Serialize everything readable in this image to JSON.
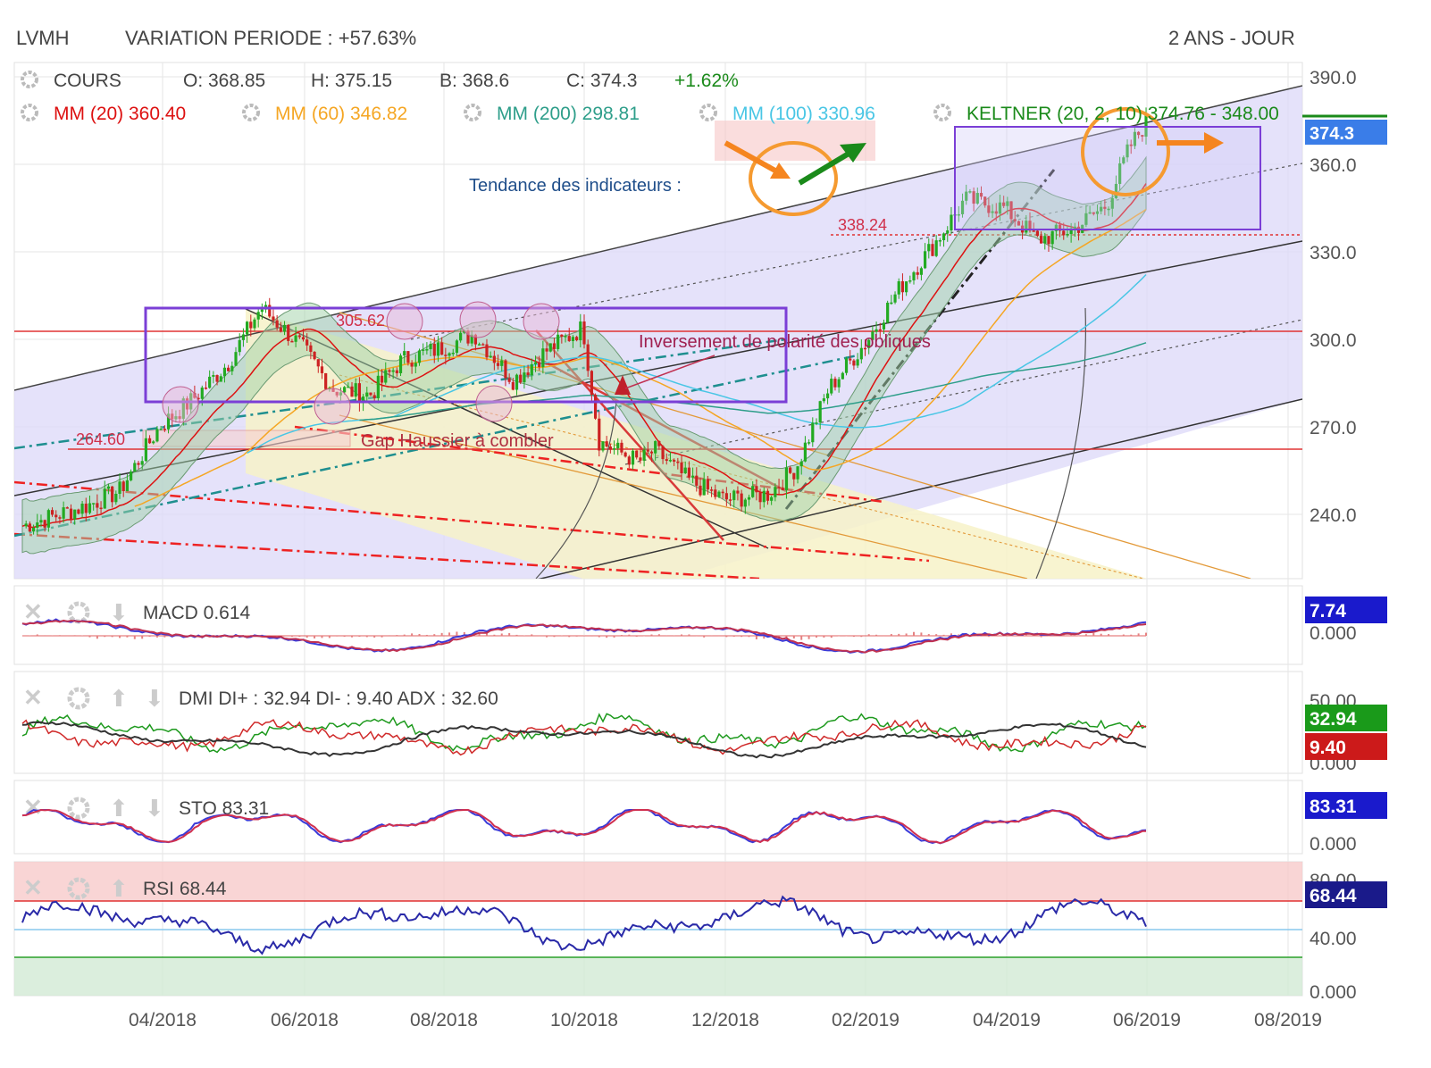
{
  "header": {
    "symbol": "LVMH",
    "variation": "VARIATION PERIODE : +57.63%",
    "period": "2 ANS - JOUR"
  },
  "ohlc": {
    "cours_label": "COURS",
    "open": "O: 368.85",
    "high": "H: 375.15",
    "low": "B: 368.6",
    "close": "C: 374.3",
    "change": "+1.62%"
  },
  "legend": [
    {
      "label": "MM (20)",
      "value": "360.40",
      "color": "#dd1111"
    },
    {
      "label": "MM (60)",
      "value": "346.82",
      "color": "#f5a623"
    },
    {
      "label": "MM (200)",
      "value": "298.81",
      "color": "#2e9e8a"
    },
    {
      "label": "MM (100)",
      "value": "330.96",
      "color": "#49c6e5"
    },
    {
      "label": "KELTNER (20, 2, 10)",
      "value": "374.76 - 348.00",
      "color": "#1a8a1a"
    }
  ],
  "annotations": {
    "trend_label": "Tendance des indicateurs :",
    "level_338": "338.24",
    "level_305": "305.62",
    "level_264": "264.60",
    "polarity": "Inversement de polarité des obliques",
    "gap": "Gap Haussier à combler"
  },
  "colors": {
    "bull_candle": "#22aa22",
    "bear_candle": "#cc2222",
    "channel_fill": "#dcd8f8",
    "yellow_channel": "#f7f2c8",
    "box": "#7b3fd6",
    "orange": "#f59a30",
    "price_badge": "#3a7de8"
  },
  "chart_data": {
    "type": "candlestick",
    "x_ticks": [
      "04/2018",
      "06/2018",
      "08/2018",
      "10/2018",
      "12/2018",
      "02/2019",
      "04/2019",
      "06/2019",
      "08/2019"
    ],
    "y_ticks": [
      "390.0",
      "360.0",
      "330.0",
      "300.0",
      "270.0",
      "240.0"
    ],
    "ylim": [
      214,
      398
    ],
    "last_price": "374.3",
    "close_path": [
      [
        "2018-02",
        236
      ],
      [
        "2018-03",
        243
      ],
      [
        "2018-03-15",
        248
      ],
      [
        "2018-04",
        270
      ],
      [
        "2018-04-15",
        279
      ],
      [
        "2018-05",
        292
      ],
      [
        "2018-05-15",
        311
      ],
      [
        "2018-06",
        298
      ],
      [
        "2018-06-15",
        283
      ],
      [
        "2018-07",
        281
      ],
      [
        "2018-07-15",
        293
      ],
      [
        "2018-08",
        297
      ],
      [
        "2018-08-15",
        302
      ],
      [
        "2018-09",
        286
      ],
      [
        "2018-09-15",
        296
      ],
      [
        "2018-10",
        304
      ],
      [
        "2018-10-08",
        265
      ],
      [
        "2018-10-25",
        258
      ],
      [
        "2018-11",
        262
      ],
      [
        "2018-11-15",
        252
      ],
      [
        "2018-12",
        245
      ],
      [
        "2018-12-20",
        247
      ],
      [
        "2019-01",
        256
      ],
      [
        "2019-01-15",
        283
      ],
      [
        "2019-02",
        300
      ],
      [
        "2019-02-15",
        318
      ],
      [
        "2019-03",
        332
      ],
      [
        "2019-03-15",
        348
      ],
      [
        "2019-04",
        345
      ],
      [
        "2019-04-15",
        334
      ],
      [
        "2019-05",
        338
      ],
      [
        "2019-05-15",
        346
      ],
      [
        "2019-05-25",
        366
      ],
      [
        "2019-06",
        374.3
      ]
    ],
    "indicators": [
      {
        "name": "MACD",
        "value": "0.614",
        "badge": "7.74",
        "badge_color": "#1a1acc",
        "axis": [
          "0.000"
        ]
      },
      {
        "name": "DMI",
        "value": "DI+ : 32.94 DI- : 9.40 ADX : 32.60",
        "badges": [
          {
            "v": "32.94",
            "c": "#1a9a1a"
          },
          {
            "v": "9.40",
            "c": "#cc1a1a"
          }
        ],
        "axis": [
          "50.00",
          "0.000"
        ]
      },
      {
        "name": "STO",
        "value": "83.31",
        "badge": "83.31",
        "badge_color": "#1a1acc",
        "axis": [
          "0.000"
        ]
      },
      {
        "name": "RSI",
        "value": "68.44",
        "badge": "68.44",
        "badge_color": "#1a1a8a",
        "axis": [
          "80.00",
          "40.00",
          "0.000"
        ]
      }
    ]
  }
}
